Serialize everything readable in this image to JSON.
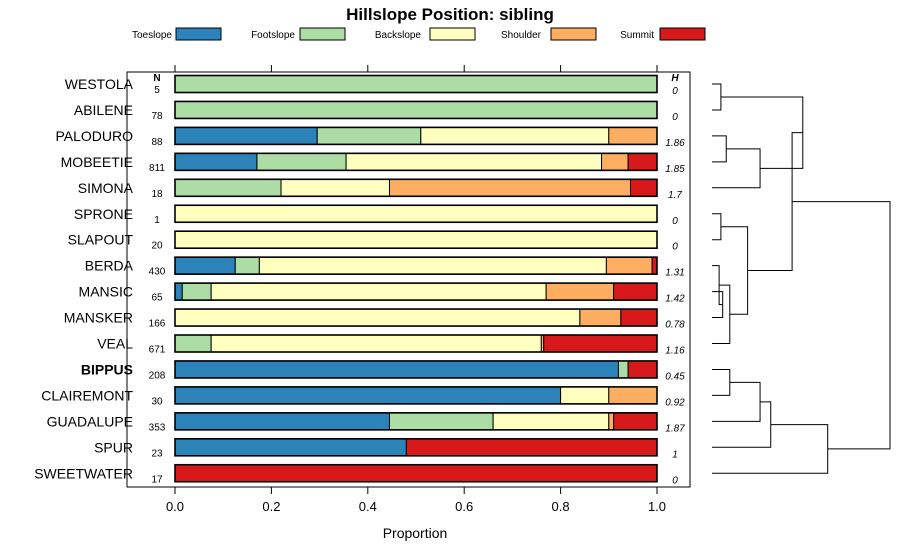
{
  "chart_data": {
    "type": "stacked-horizontal-bar",
    "title": "Hillslope Position: sibling",
    "xlabel": "Proportion",
    "xlim": [
      0,
      1
    ],
    "xticks": [
      "0.0",
      "0.2",
      "0.4",
      "0.6",
      "0.8",
      "1.0"
    ],
    "xtick_values": [
      0,
      0.2,
      0.4,
      0.6,
      0.8,
      1.0
    ],
    "n_header": "N",
    "h_header": "H",
    "categories": [
      {
        "name": "Toeslope",
        "color": "#2b83ba"
      },
      {
        "name": "Footslope",
        "color": "#abdda4"
      },
      {
        "name": "Backslope",
        "color": "#ffffbf"
      },
      {
        "name": "Shoulder",
        "color": "#fdae61"
      },
      {
        "name": "Summit",
        "color": "#d7191c"
      }
    ],
    "rows": [
      {
        "name": "WESTOLA",
        "n": "5",
        "h": "0",
        "bold": false,
        "values": [
          0,
          1.0,
          0,
          0,
          0
        ]
      },
      {
        "name": "ABILENE",
        "n": "78",
        "h": "0",
        "bold": false,
        "values": [
          0,
          1.0,
          0,
          0,
          0
        ]
      },
      {
        "name": "PALODURO",
        "n": "88",
        "h": "1.86",
        "bold": false,
        "values": [
          0.295,
          0.215,
          0.39,
          0.1,
          0
        ]
      },
      {
        "name": "MOBEETIE",
        "n": "811",
        "h": "1.85",
        "bold": false,
        "values": [
          0.17,
          0.185,
          0.53,
          0.055,
          0.06
        ]
      },
      {
        "name": "SIMONA",
        "n": "18",
        "h": "1.7",
        "bold": false,
        "values": [
          0,
          0.22,
          0.225,
          0.5,
          0.055
        ]
      },
      {
        "name": "SPRONE",
        "n": "1",
        "h": "0",
        "bold": false,
        "values": [
          0,
          0,
          1.0,
          0,
          0
        ]
      },
      {
        "name": "SLAPOUT",
        "n": "20",
        "h": "0",
        "bold": false,
        "values": [
          0,
          0,
          1.0,
          0,
          0
        ]
      },
      {
        "name": "BERDA",
        "n": "430",
        "h": "1.31",
        "bold": false,
        "values": [
          0.125,
          0.05,
          0.72,
          0.095,
          0.01
        ]
      },
      {
        "name": "MANSIC",
        "n": "65",
        "h": "1.42",
        "bold": false,
        "values": [
          0.015,
          0.06,
          0.695,
          0.14,
          0.09
        ]
      },
      {
        "name": "MANSKER",
        "n": "166",
        "h": "0.78",
        "bold": false,
        "values": [
          0,
          0,
          0.84,
          0.085,
          0.075
        ]
      },
      {
        "name": "VEAL",
        "n": "671",
        "h": "1.16",
        "bold": false,
        "values": [
          0,
          0.075,
          0.685,
          0.005,
          0.235
        ]
      },
      {
        "name": "BIPPUS",
        "n": "208",
        "h": "0.45",
        "bold": true,
        "values": [
          0.92,
          0.02,
          0,
          0,
          0.06
        ]
      },
      {
        "name": "CLAIREMONT",
        "n": "30",
        "h": "0.92",
        "bold": false,
        "values": [
          0.8,
          0,
          0.1,
          0.1,
          0
        ]
      },
      {
        "name": "GUADALUPE",
        "n": "353",
        "h": "1.87",
        "bold": false,
        "values": [
          0.445,
          0.215,
          0.24,
          0.01,
          0.09
        ]
      },
      {
        "name": "SPUR",
        "n": "23",
        "h": "1",
        "bold": false,
        "values": [
          0.48,
          0,
          0,
          0,
          0.52
        ]
      },
      {
        "name": "SWEETWATER",
        "n": "17",
        "h": "0",
        "bold": false,
        "values": [
          0,
          0,
          0,
          0,
          1.0
        ]
      }
    ],
    "dendrogram": {
      "description": "hierarchical clustering of rows (leaf indices refer to rows order)",
      "merges": [
        {
          "id": "a",
          "left": 0,
          "right": 1,
          "height": 0.05
        },
        {
          "id": "b",
          "left": 2,
          "right": 3,
          "height": 0.08
        },
        {
          "id": "c",
          "left": "b",
          "right": 4,
          "height": 0.27
        },
        {
          "id": "d",
          "left": "a",
          "right": "c",
          "height": 0.51
        },
        {
          "id": "e",
          "left": 5,
          "right": 6,
          "height": 0.05
        },
        {
          "id": "f",
          "left": 8,
          "right": 9,
          "height": 0.06
        },
        {
          "id": "g",
          "left": 7,
          "right": "f",
          "height": 0.04
        },
        {
          "id": "h",
          "left": "g",
          "right": 10,
          "height": 0.1
        },
        {
          "id": "i",
          "left": "e",
          "right": "h",
          "height": 0.2
        },
        {
          "id": "j",
          "left": "d",
          "right": "i",
          "height": 0.45
        },
        {
          "id": "k",
          "left": 11,
          "right": 12,
          "height": 0.1
        },
        {
          "id": "l",
          "left": "k",
          "right": 13,
          "height": 0.27
        },
        {
          "id": "m",
          "left": "l",
          "right": 14,
          "height": 0.33
        },
        {
          "id": "n",
          "left": "m",
          "right": 15,
          "height": 0.65
        },
        {
          "id": "root",
          "left": "j",
          "right": "n",
          "height": 1.0
        }
      ]
    }
  }
}
